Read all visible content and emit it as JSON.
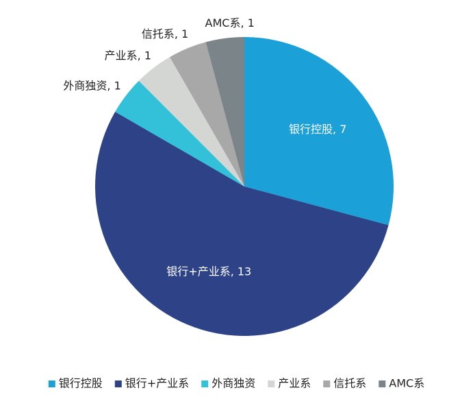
{
  "chart_data": {
    "type": "pie",
    "categories": [
      "银行控股",
      "银行+产业系",
      "外商独资",
      "产业系",
      "信托系",
      "AMC系"
    ],
    "values": [
      7,
      13,
      1,
      1,
      1,
      1
    ],
    "value_labels": [
      "银行控股, 7",
      "银行+产业系, 13",
      "外商独资, 1",
      "产业系, 1",
      "信托系, 1",
      "AMC系, 1"
    ],
    "colors": [
      "#1ba0d7",
      "#2e4288",
      "#33c1d9",
      "#d4d6d4",
      "#a8a8a8",
      "#7b8489"
    ],
    "legend": "bottom"
  }
}
